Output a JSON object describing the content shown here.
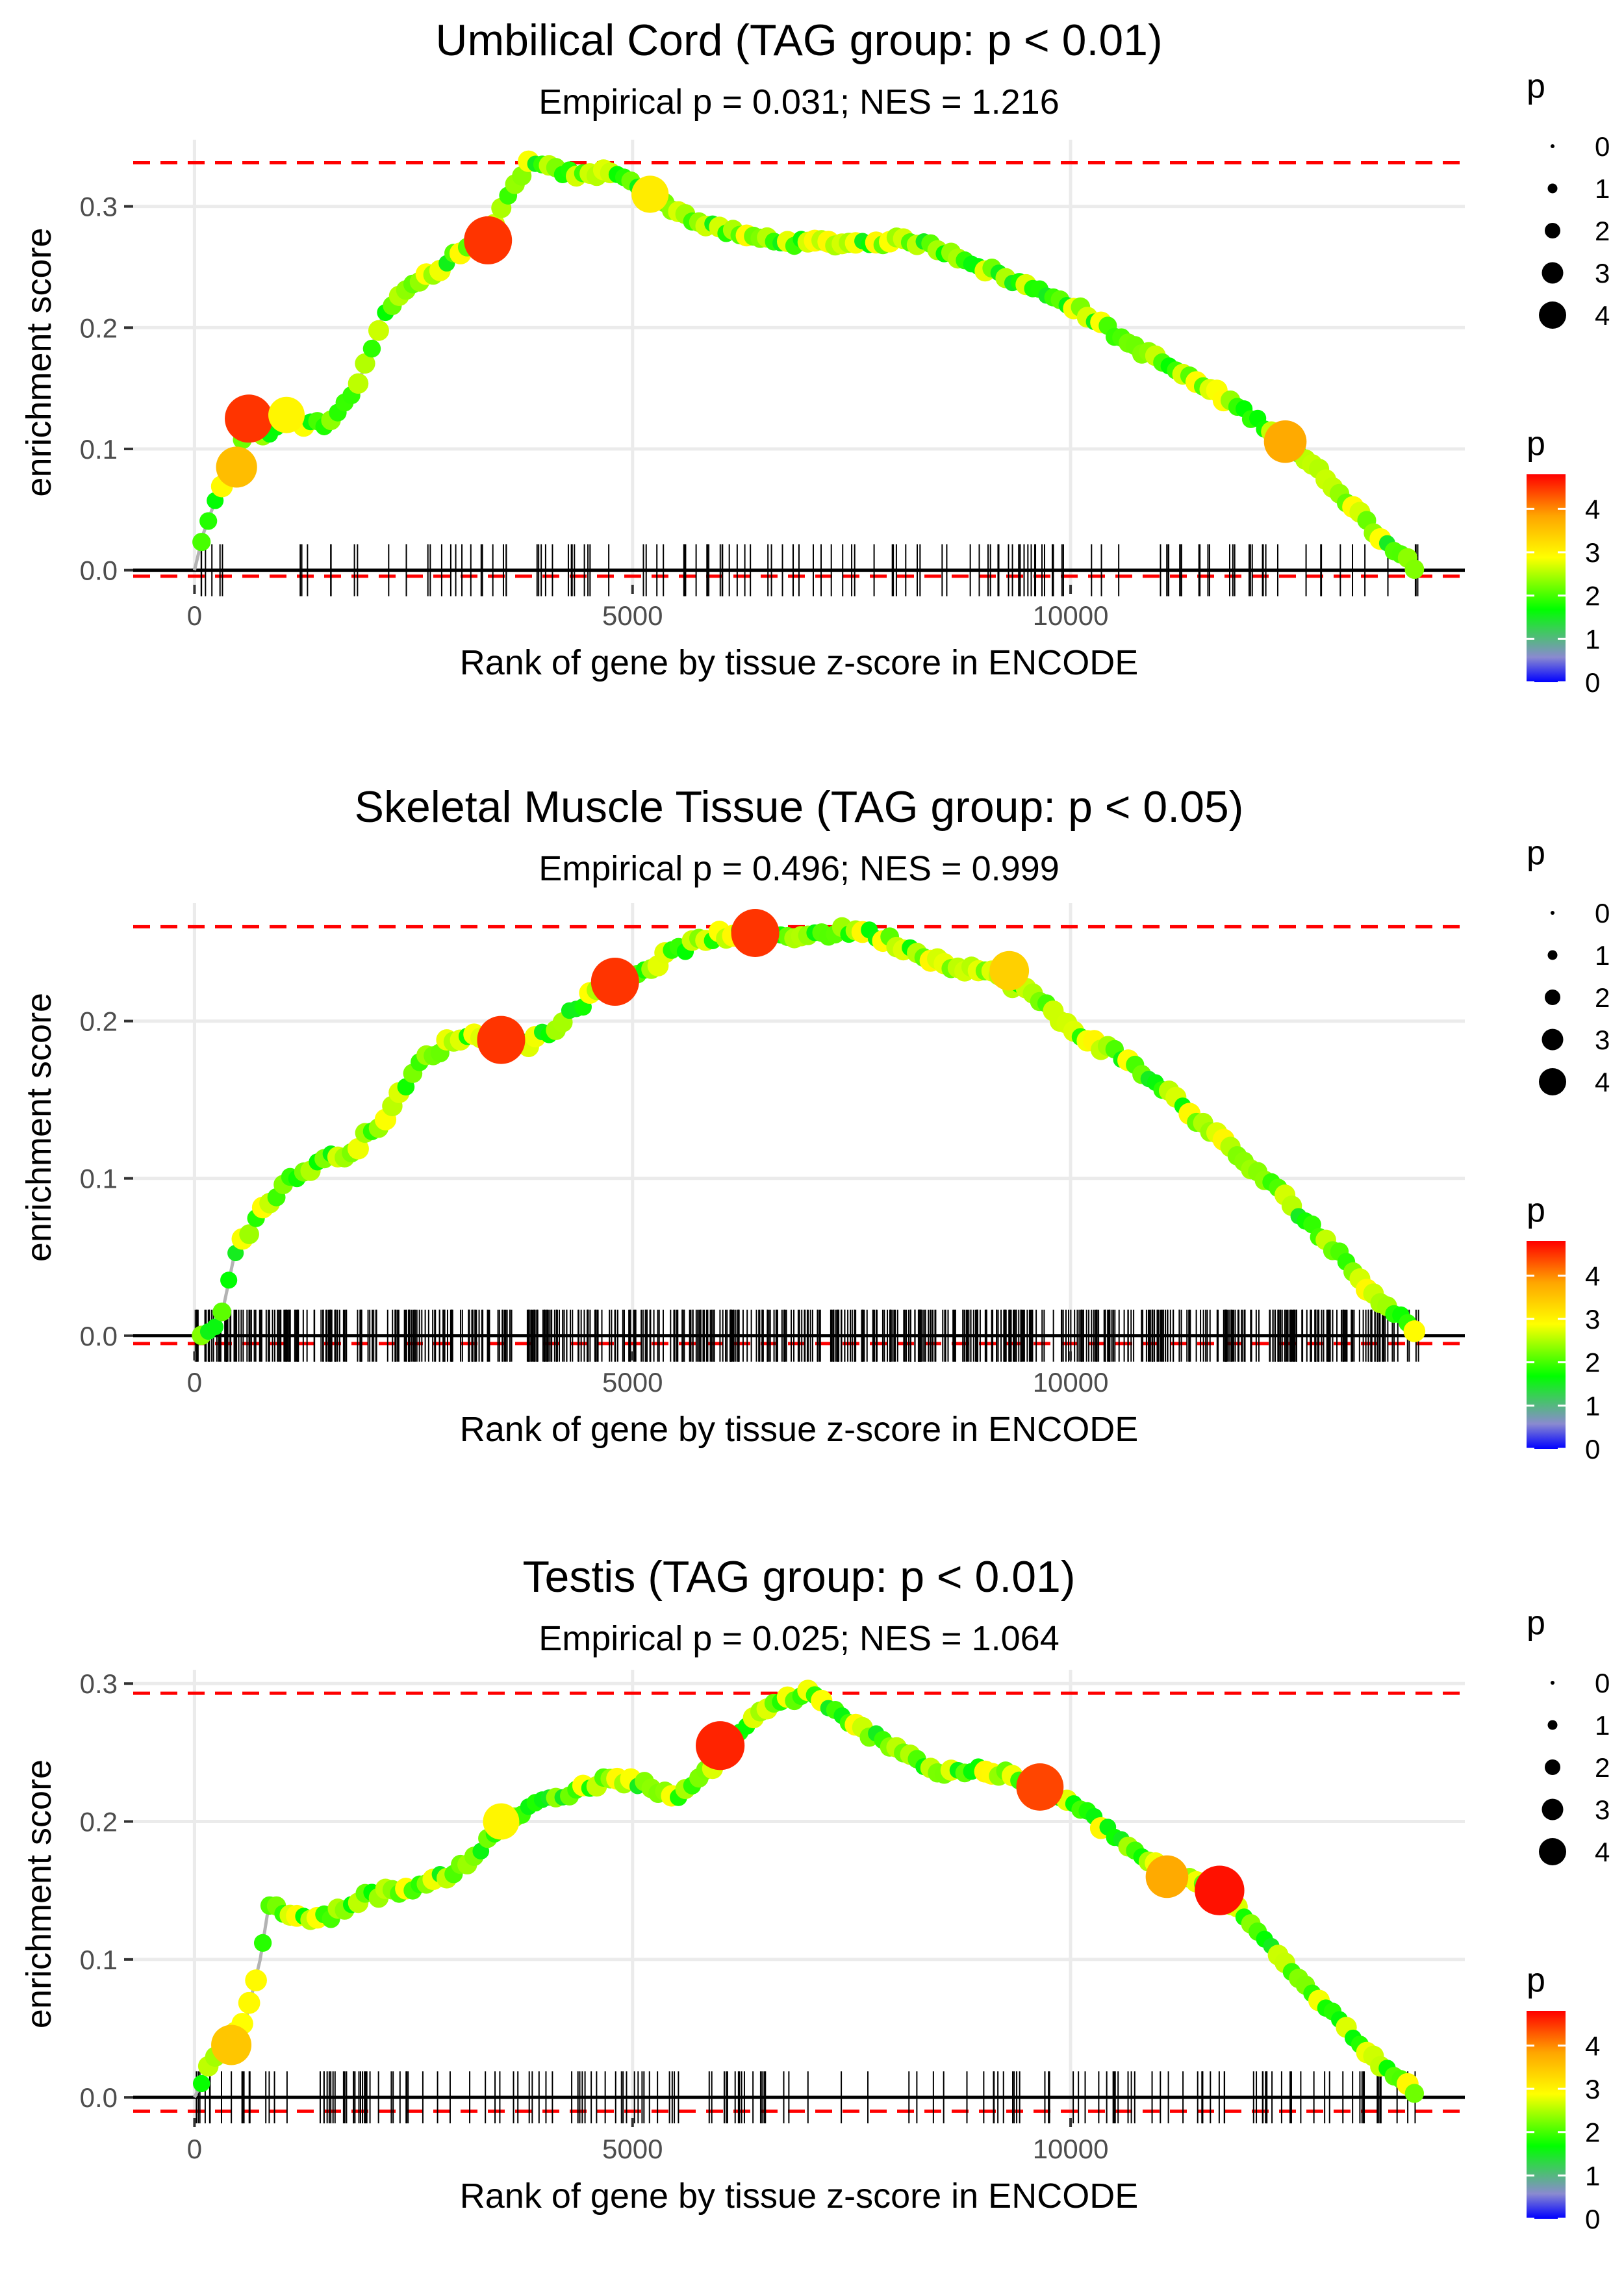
{
  "chart_data": [
    {
      "type": "line",
      "title": "Umbilical Cord (TAG group: p < 0.01)",
      "subtitle": "Empirical p = 0.031; NES = 1.216",
      "xlabel": "Rank of gene by tissue z-score in ENCODE",
      "ylabel": "enrichment score",
      "xlim": [
        -700,
        14500
      ],
      "ylim": [
        -0.012,
        0.355
      ],
      "x_ticks": [
        0,
        5000,
        10000
      ],
      "x_tick_labels": [
        "0",
        "5000",
        "10000"
      ],
      "y_ticks": [
        0.0,
        0.1,
        0.2,
        0.3
      ],
      "y_tick_labels": [
        "0.0",
        "0.1",
        "0.2",
        "0.3"
      ],
      "max_es": 0.336,
      "min_es": -0.005,
      "n_genes": 14000,
      "hit_count": 140,
      "series": [
        {
          "name": "running enrichment score",
          "x": [
            0,
            100,
            250,
            450,
            620,
            800,
            1000,
            1250,
            1550,
            1850,
            2150,
            2450,
            2750,
            3050,
            3350,
            3600,
            3800,
            4100,
            4450,
            4800,
            5300,
            5800,
            6300,
            6900,
            7500,
            8200,
            8700,
            9300,
            10000,
            10600,
            11200,
            11800,
            12400,
            13000,
            13500,
            13900,
            14000
          ],
          "y": [
            0.0,
            0.03,
            0.06,
            0.085,
            0.125,
            0.11,
            0.125,
            0.12,
            0.12,
            0.15,
            0.21,
            0.235,
            0.245,
            0.265,
            0.275,
            0.31,
            0.336,
            0.33,
            0.325,
            0.33,
            0.305,
            0.285,
            0.275,
            0.27,
            0.27,
            0.272,
            0.26,
            0.24,
            0.22,
            0.19,
            0.165,
            0.14,
            0.11,
            0.07,
            0.03,
            0.005,
            0.0
          ]
        }
      ],
      "highlight_points": [
        {
          "x": 480,
          "y": 0.085,
          "p": 3.6
        },
        {
          "x": 620,
          "y": 0.125,
          "p": 4.5
        },
        {
          "x": 1050,
          "y": 0.128,
          "p": 3.0
        },
        {
          "x": 3350,
          "y": 0.272,
          "p": 4.5
        },
        {
          "x": 5200,
          "y": 0.31,
          "p": 3.1
        },
        {
          "x": 12450,
          "y": 0.106,
          "p": 3.8
        }
      ]
    },
    {
      "type": "line",
      "title": "Skeletal Muscle Tissue (TAG group: p < 0.05)",
      "subtitle": "Empirical p = 0.496; NES = 0.999",
      "xlabel": "Rank of gene by tissue z-score in ENCODE",
      "ylabel": "enrichment score",
      "xlim": [
        -700,
        14500
      ],
      "ylim": [
        -0.01,
        0.275
      ],
      "x_ticks": [
        0,
        5000,
        10000
      ],
      "x_tick_labels": [
        "0",
        "5000",
        "10000"
      ],
      "y_ticks": [
        0.0,
        0.1,
        0.2
      ],
      "y_tick_labels": [
        "0.0",
        "0.1",
        "0.2"
      ],
      "max_es": 0.26,
      "min_es": -0.005,
      "n_genes": 14000,
      "hit_count": 650,
      "series": [
        {
          "name": "running enrichment score",
          "x": [
            0,
            300,
            450,
            700,
            1000,
            1400,
            1800,
            2200,
            2600,
            3000,
            3400,
            3800,
            4200,
            4600,
            5000,
            5500,
            6000,
            6500,
            7000,
            7600,
            8000,
            8500,
            9000,
            9500,
            10000,
            10500,
            11000,
            11500,
            12000,
            12500,
            13000,
            13500,
            13900,
            14000
          ],
          "y": [
            0.0,
            0.01,
            0.05,
            0.075,
            0.095,
            0.11,
            0.118,
            0.14,
            0.175,
            0.19,
            0.19,
            0.185,
            0.2,
            0.22,
            0.228,
            0.245,
            0.255,
            0.255,
            0.255,
            0.258,
            0.25,
            0.238,
            0.232,
            0.22,
            0.195,
            0.18,
            0.16,
            0.135,
            0.11,
            0.085,
            0.055,
            0.025,
            0.005,
            0.0
          ]
        }
      ],
      "highlight_points": [
        {
          "x": 3500,
          "y": 0.188,
          "p": 4.5
        },
        {
          "x": 4800,
          "y": 0.225,
          "p": 4.5
        },
        {
          "x": 6400,
          "y": 0.256,
          "p": 4.5
        },
        {
          "x": 9300,
          "y": 0.232,
          "p": 3.4
        }
      ]
    },
    {
      "type": "line",
      "title": "Testis (TAG group: p < 0.01)",
      "subtitle": "Empirical p = 0.025; NES = 1.064",
      "xlabel": "Rank of gene by tissue z-score in ENCODE",
      "ylabel": "enrichment score",
      "xlim": [
        -700,
        14500
      ],
      "ylim": [
        -0.015,
        0.31
      ],
      "x_ticks": [
        0,
        5000,
        10000
      ],
      "x_tick_labels": [
        "0",
        "5000",
        "10000"
      ],
      "y_ticks": [
        0.0,
        0.1,
        0.2,
        0.3
      ],
      "y_tick_labels": [
        "0.0",
        "0.1",
        "0.2",
        "0.3"
      ],
      "max_es": 0.293,
      "min_es": -0.01,
      "n_genes": 14000,
      "hit_count": 170,
      "series": [
        {
          "name": "running enrichment score",
          "x": [
            0,
            150,
            400,
            600,
            750,
            850,
            1200,
            1500,
            1900,
            2300,
            2700,
            3100,
            3500,
            3900,
            4300,
            4700,
            5100,
            5500,
            5900,
            6200,
            6600,
            7000,
            7500,
            8000,
            8500,
            9000,
            9600,
            10200,
            10800,
            11200,
            11700,
            12200,
            12800,
            13300,
            13700,
            14000
          ],
          "y": [
            0.0,
            0.02,
            0.04,
            0.06,
            0.1,
            0.14,
            0.13,
            0.13,
            0.145,
            0.15,
            0.155,
            0.17,
            0.195,
            0.215,
            0.22,
            0.23,
            0.228,
            0.215,
            0.24,
            0.265,
            0.285,
            0.293,
            0.27,
            0.255,
            0.235,
            0.238,
            0.228,
            0.205,
            0.175,
            0.16,
            0.15,
            0.115,
            0.075,
            0.04,
            0.015,
            0.0
          ]
        }
      ],
      "highlight_points": [
        {
          "x": 420,
          "y": 0.038,
          "p": 3.5
        },
        {
          "x": 3500,
          "y": 0.2,
          "p": 3.0
        },
        {
          "x": 6000,
          "y": 0.255,
          "p": 4.6
        },
        {
          "x": 9650,
          "y": 0.225,
          "p": 4.4
        },
        {
          "x": 11100,
          "y": 0.16,
          "p": 3.8
        },
        {
          "x": 11700,
          "y": 0.15,
          "p": 4.7
        }
      ]
    }
  ],
  "legend": {
    "size_title": "p",
    "size_labels": [
      "0",
      "1",
      "2",
      "3",
      "4"
    ],
    "color_title": "p",
    "color_labels": [
      "0",
      "1",
      "2",
      "3",
      "4"
    ],
    "color_range": [
      0,
      4.8
    ],
    "color_stops": [
      "#0000ff",
      "#8a8ad0",
      "#00ff00",
      "#ffff00",
      "#ffa500",
      "#ff0000"
    ]
  },
  "colors": {
    "line": "#b3b3b3",
    "dashed": "#ff0000",
    "grid": "#ebebeb",
    "zero_line": "#000000"
  }
}
